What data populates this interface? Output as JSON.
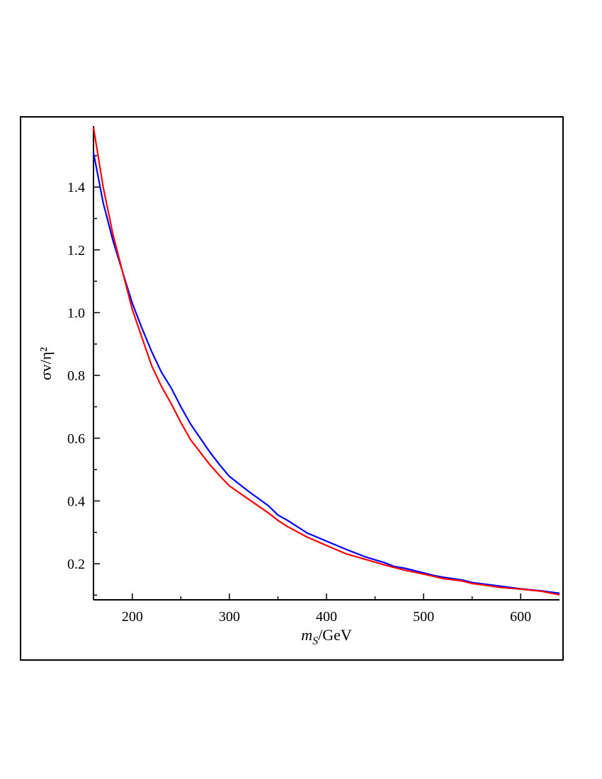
{
  "chart_data": {
    "type": "line",
    "xlabel": "m_S/GeV",
    "ylabel": "σv/η²",
    "xlim": [
      160,
      640
    ],
    "ylim": [
      0.085,
      1.59
    ],
    "grid": false,
    "legend": "none",
    "x_ticks": [
      200,
      300,
      400,
      500,
      600
    ],
    "x_tick_labels": [
      "200",
      "300",
      "400",
      "500",
      "600"
    ],
    "y_ticks": [
      0.2,
      0.4,
      0.6,
      0.8,
      1.0,
      1.2,
      1.4
    ],
    "y_tick_labels": [
      "0.2",
      "0.4",
      "0.6",
      "0.8",
      "1.0",
      "1.2",
      "1.4"
    ],
    "series": [
      {
        "color": "#0000ff",
        "x": [
          160,
          170,
          180,
          190,
          200,
          210,
          220,
          230,
          240,
          250,
          260,
          270,
          280,
          290,
          300,
          320,
          340,
          350,
          360,
          380,
          400,
          420,
          440,
          460,
          470,
          480,
          500,
          510,
          520,
          540,
          550,
          560,
          580,
          600,
          620,
          640
        ],
        "y": [
          1.51,
          1.35,
          1.23,
          1.13,
          1.03,
          0.95,
          0.875,
          0.81,
          0.76,
          0.7,
          0.645,
          0.6,
          0.555,
          0.515,
          0.478,
          0.43,
          0.385,
          0.355,
          0.338,
          0.298,
          0.272,
          0.246,
          0.222,
          0.203,
          0.191,
          0.186,
          0.171,
          0.163,
          0.157,
          0.148,
          0.14,
          0.136,
          0.128,
          0.12,
          0.114,
          0.106
        ]
      },
      {
        "color": "#ff0000",
        "x": [
          160,
          170,
          180,
          190,
          200,
          210,
          220,
          230,
          240,
          250,
          260,
          270,
          280,
          290,
          300,
          320,
          340,
          350,
          360,
          380,
          400,
          420,
          440,
          460,
          480,
          500,
          520,
          540,
          550,
          560,
          580,
          600,
          620,
          640
        ],
        "y": [
          1.59,
          1.4,
          1.25,
          1.13,
          1.01,
          0.92,
          0.83,
          0.765,
          0.71,
          0.65,
          0.595,
          0.555,
          0.515,
          0.48,
          0.448,
          0.405,
          0.362,
          0.338,
          0.318,
          0.285,
          0.258,
          0.232,
          0.214,
          0.196,
          0.18,
          0.167,
          0.153,
          0.145,
          0.137,
          0.133,
          0.124,
          0.119,
          0.113,
          0.101
        ]
      }
    ]
  }
}
